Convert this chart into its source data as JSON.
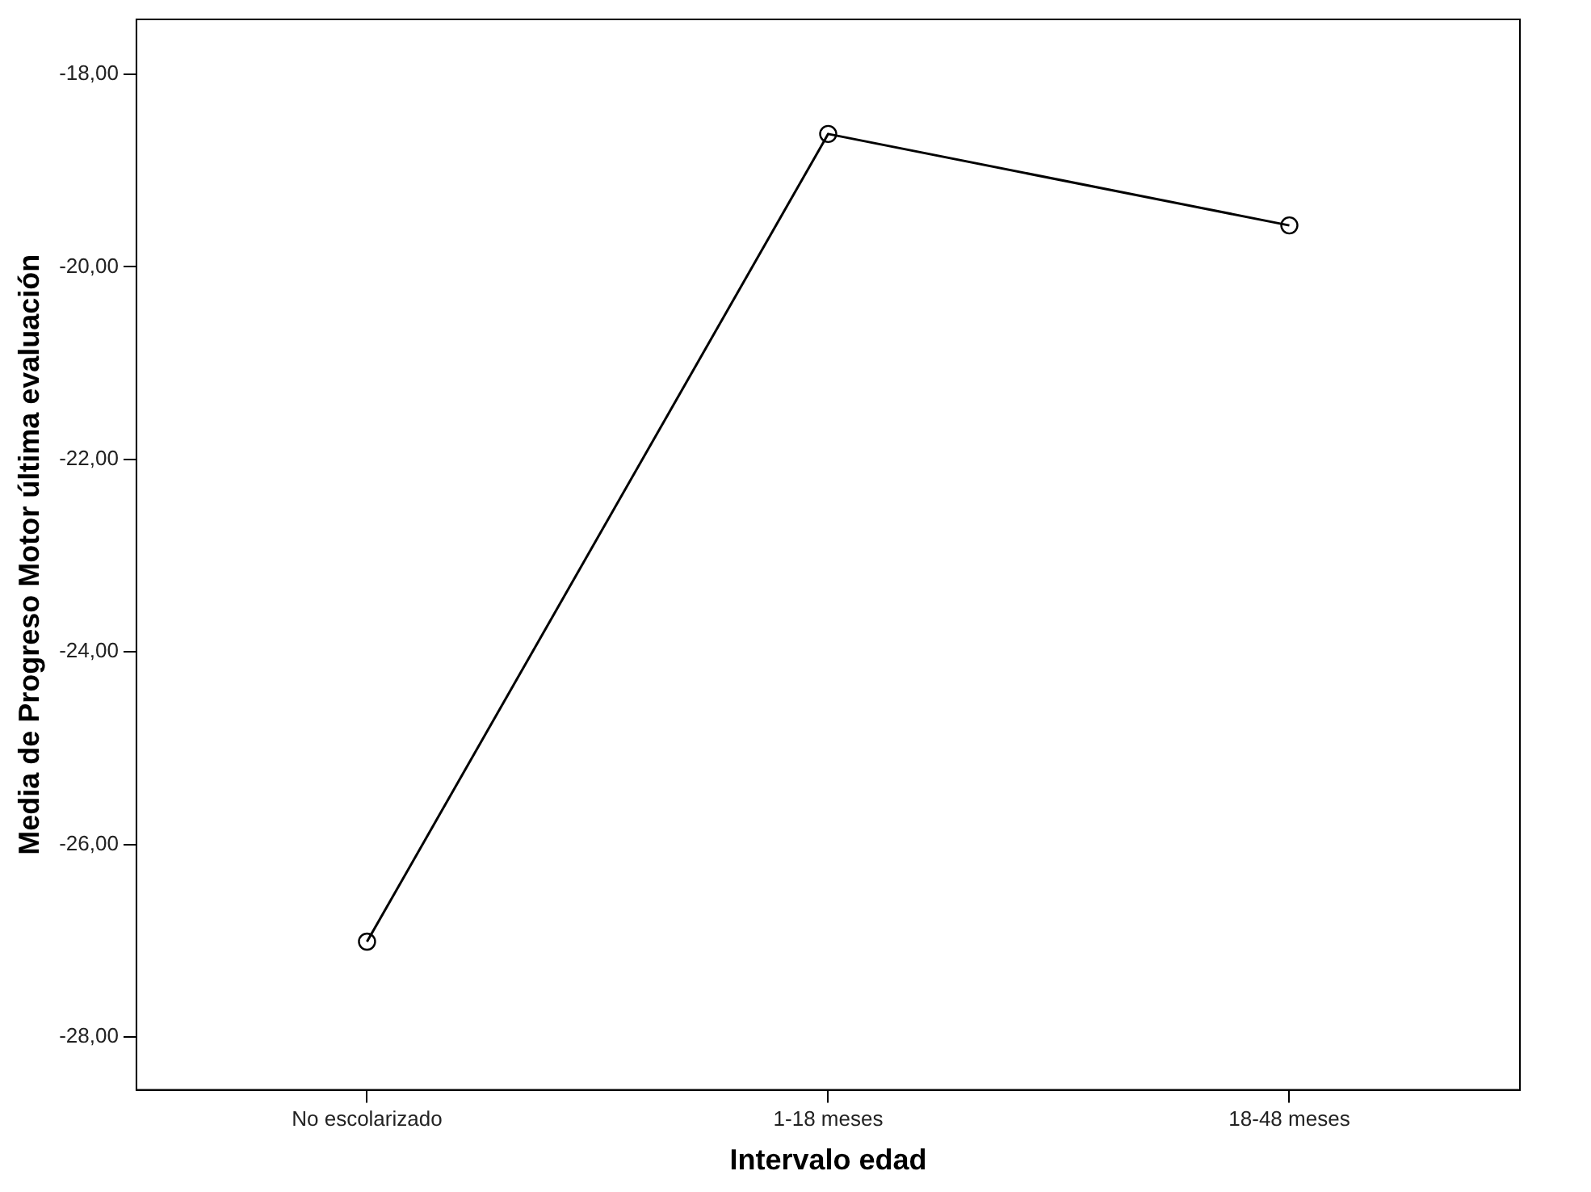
{
  "chart_data": {
    "type": "line",
    "xlabel": "Intervalo edad",
    "ylabel": "Media de Progreso Motor última evaluación",
    "categories": [
      "No escolarizado",
      "1-18 meses",
      "18-48 meses"
    ],
    "series": [
      {
        "color": "#000000",
        "values": [
          -27.01,
          -18.62,
          -19.57
        ]
      }
    ],
    "ylim": [
      -28.55,
      -17.43
    ],
    "yticks": [
      {
        "value": -28,
        "label": "-28,00"
      },
      {
        "value": -26,
        "label": "-26,00"
      },
      {
        "value": -24,
        "label": "-24,00"
      },
      {
        "value": -22,
        "label": "-22,00"
      },
      {
        "value": -20,
        "label": "-20,00"
      },
      {
        "value": -18,
        "label": "-18,00"
      }
    ],
    "grid": false,
    "legend": false,
    "marker": "circle",
    "line_style": "solid"
  }
}
